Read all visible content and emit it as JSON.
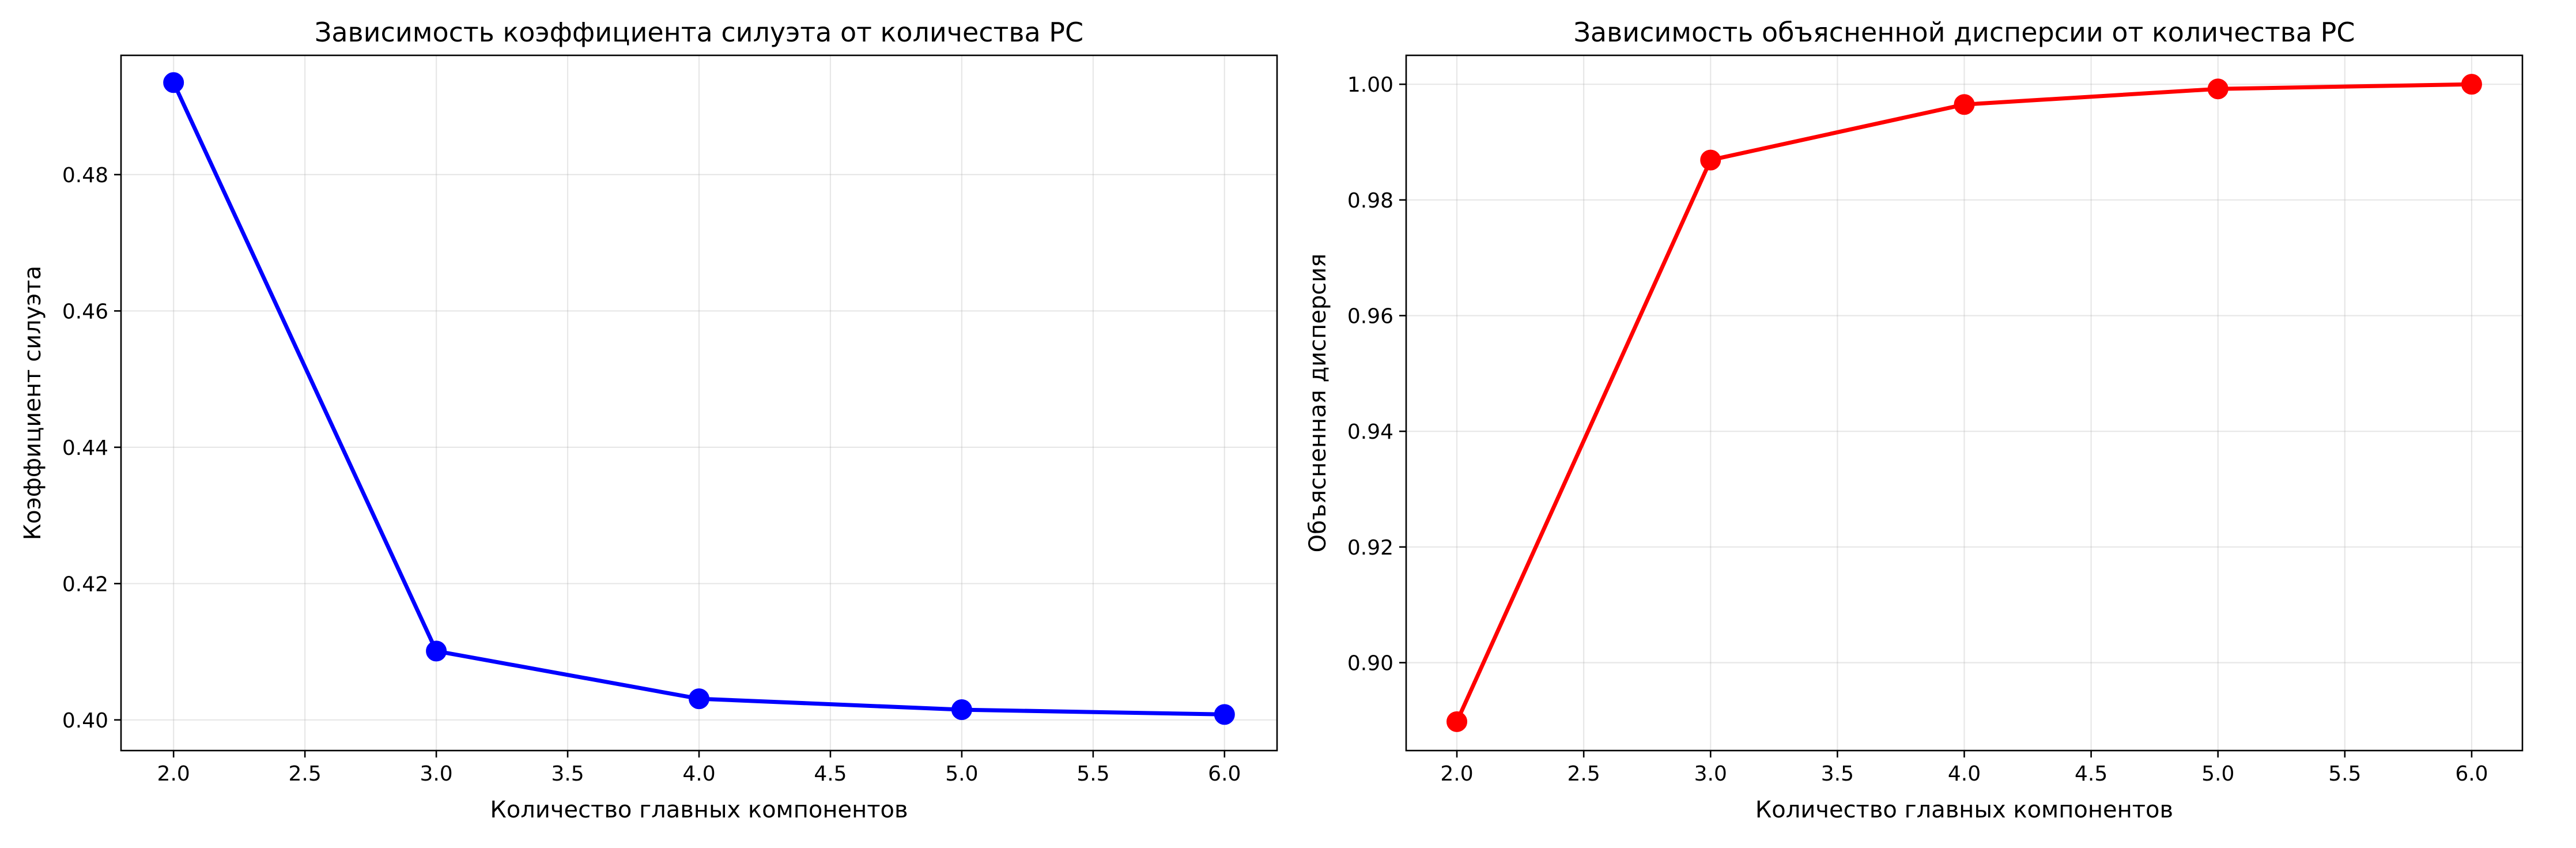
{
  "chart_data": [
    {
      "type": "line",
      "title": "Зависимость коэффициента силуэта от количества PC",
      "xlabel": "Количество главных компонентов",
      "ylabel": "Коэффициент силуэта",
      "x": [
        2,
        3,
        4,
        5,
        6
      ],
      "series": [
        {
          "values": [
            0.4935,
            0.4101,
            0.4031,
            0.4015,
            0.4008
          ],
          "color": "#0000ff",
          "marker": "circle"
        }
      ],
      "xlim": [
        1.8,
        6.2
      ],
      "ylim": [
        0.3955,
        0.4975
      ],
      "xticks": [
        2.0,
        2.5,
        3.0,
        3.5,
        4.0,
        4.5,
        5.0,
        5.5,
        6.0
      ],
      "xtick_labels": [
        "2.0",
        "2.5",
        "3.0",
        "3.5",
        "4.0",
        "4.5",
        "5.0",
        "5.5",
        "6.0"
      ],
      "yticks": [
        0.4,
        0.42,
        0.44,
        0.46,
        0.48
      ],
      "ytick_labels": [
        "0.40",
        "0.42",
        "0.44",
        "0.46",
        "0.48"
      ],
      "grid": true
    },
    {
      "type": "line",
      "title": "Зависимость объясненной дисперсии от количества PC",
      "xlabel": "Количество главных компонентов",
      "ylabel": "Объясненная дисперсия",
      "x": [
        2,
        3,
        4,
        5,
        6
      ],
      "series": [
        {
          "values": [
            0.8898,
            0.9869,
            0.9965,
            0.9992,
            1.0
          ],
          "color": "#ff0000",
          "marker": "circle"
        }
      ],
      "xlim": [
        1.8,
        6.2
      ],
      "ylim": [
        0.8848,
        1.005
      ],
      "xticks": [
        2.0,
        2.5,
        3.0,
        3.5,
        4.0,
        4.5,
        5.0,
        5.5,
        6.0
      ],
      "xtick_labels": [
        "2.0",
        "2.5",
        "3.0",
        "3.5",
        "4.0",
        "4.5",
        "5.0",
        "5.5",
        "6.0"
      ],
      "yticks": [
        0.9,
        0.92,
        0.94,
        0.96,
        0.98,
        1.0
      ],
      "ytick_labels": [
        "0.90",
        "0.92",
        "0.94",
        "0.96",
        "0.98",
        "1.00"
      ],
      "grid": true
    }
  ]
}
